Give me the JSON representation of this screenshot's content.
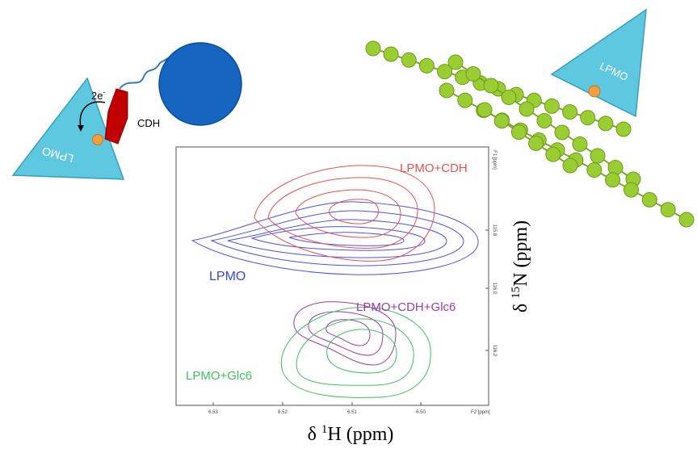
{
  "cartoon_left": {
    "enzyme_label": "LPMO",
    "electron_label": "2e",
    "electron_sup": "-",
    "partner_label": "CDH"
  },
  "cartoon_right": {
    "enzyme_label": "LPMO"
  },
  "colors": {
    "triangle_fill": "#5ec8e0",
    "triangle_stroke": "#3a9fb8",
    "copper": "#f0a040",
    "cdh_heme": "#c00000",
    "cdh_flavin": "#1565c0",
    "linker": "#3a78c8",
    "cellulose_bead": "#9acd32",
    "lpmo_series": "#4a55e6",
    "lpmo_cdh_series": "#e85050",
    "lpmo_cdh_glc6_series": "#9b3ca8",
    "lpmo_glc6_series": "#40c060"
  },
  "nmr_panel": {
    "f1_unit": "F1 [ppm]",
    "f2_unit": "F2 [ppm]",
    "x_axis_title_prefix": "δ ",
    "x_axis_title_sup": "1",
    "x_axis_title_suffix": "H (ppm)",
    "y_axis_title_prefix": "δ ",
    "y_axis_title_sup": "15",
    "y_axis_title_suffix": "N (ppm)",
    "x_ticks": [
      "6.53",
      "6.52",
      "6.51",
      "6.50"
    ],
    "y_ticks": [
      "115.8",
      "116.0",
      "116.2"
    ],
    "series_labels": {
      "lpmo": "LPMO",
      "lpmo_cdh": "LPMO+CDH",
      "lpmo_cdh_glc6": "LPMO+CDH+Glc6",
      "lpmo_glc6": "LPMO+Glc6"
    }
  }
}
